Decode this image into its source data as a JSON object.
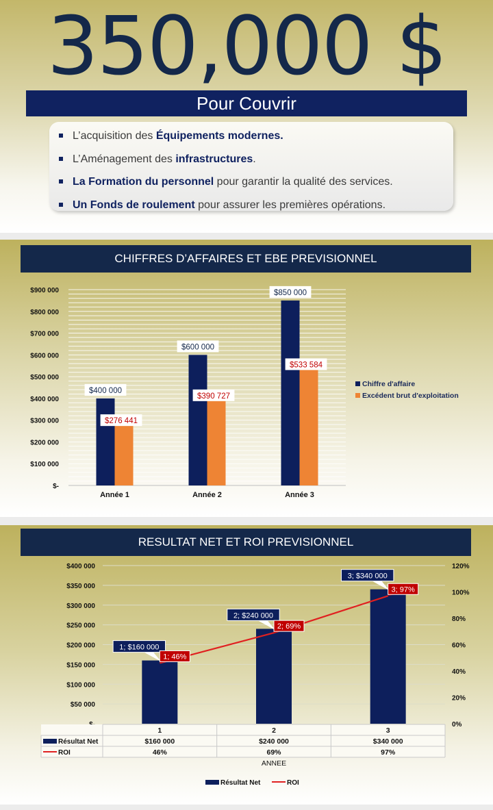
{
  "header": {
    "amount": "350,000 $",
    "subtitle": "Pour Couvrir",
    "items": [
      {
        "pre": "L’acquisition des ",
        "bold": "Équipements modernes.",
        "post": ""
      },
      {
        "pre": "L’Aménagement des ",
        "bold": "infrastructures",
        "post": "."
      },
      {
        "pre": "",
        "bold": "La Formation du personnel",
        "post": " pour garantir la qualité des services."
      },
      {
        "pre": "",
        "bold": "Un Fonds de roulement",
        "post": " pour assurer les premières opérations."
      }
    ]
  },
  "colors": {
    "navy": "#14284a",
    "bar_navy": "#0d1f5c",
    "orange": "#ee8434",
    "red": "#c00000",
    "line_red": "#e02020"
  },
  "chart_data": [
    {
      "type": "bar",
      "title": "CHIFFRES D’AFFAIRES ET EBE PREVISIONNEL",
      "categories": [
        "Année 1",
        "Année 2",
        "Année 3"
      ],
      "series": [
        {
          "name": "Chiffre d'affaire",
          "values": [
            400000,
            600000,
            850000
          ],
          "labels": [
            "$400 000",
            "$600 000",
            "$850 000"
          ]
        },
        {
          "name": "Excédent brut d'exploitation",
          "values": [
            276441,
            390727,
            533584
          ],
          "labels": [
            "$276 441",
            "$390 727",
            "$533 584"
          ]
        }
      ],
      "ylim": [
        0,
        900000
      ],
      "yticks": [
        0,
        100000,
        200000,
        300000,
        400000,
        500000,
        600000,
        700000,
        800000,
        900000
      ],
      "yticklabels": [
        "$-",
        "$100 000",
        "$200 000",
        "$300 000",
        "$400 000",
        "$500 000",
        "$600 000",
        "$700 000",
        "$800 000",
        "$900 000"
      ],
      "grid": true,
      "legend": "right"
    },
    {
      "type": "bar",
      "title": "RESULTAT NET ET ROI PREVISIONNEL",
      "xlabel": "ANNEE",
      "categories": [
        "1",
        "2",
        "3"
      ],
      "series": [
        {
          "name": "Résultat Net",
          "kind": "bar",
          "values": [
            160000,
            240000,
            340000
          ],
          "labels": [
            "1; $160 000",
            "2; $240 000",
            "3; $340 000"
          ],
          "table": [
            "$160 000",
            "$240 000",
            "$340 000"
          ]
        },
        {
          "name": "ROI",
          "kind": "line",
          "axis": "right",
          "values": [
            46,
            69,
            97
          ],
          "labels": [
            "1; 46%",
            "2; 69%",
            "3; 97%"
          ],
          "table": [
            "46%",
            "69%",
            "97%"
          ]
        }
      ],
      "ylim": [
        0,
        400000
      ],
      "yticks": [
        0,
        50000,
        100000,
        150000,
        200000,
        250000,
        300000,
        350000,
        400000
      ],
      "yticklabels": [
        "$-",
        "$50 000",
        "$100 000",
        "$150 000",
        "$200 000",
        "$250 000",
        "$300 000",
        "$350 000",
        "$400 000"
      ],
      "y2lim": [
        0,
        120
      ],
      "y2ticks": [
        0,
        20,
        40,
        60,
        80,
        100,
        120
      ],
      "y2ticklabels": [
        "0%",
        "20%",
        "40%",
        "60%",
        "80%",
        "100%",
        "120%"
      ],
      "grid": true,
      "legend": "bottom"
    }
  ]
}
